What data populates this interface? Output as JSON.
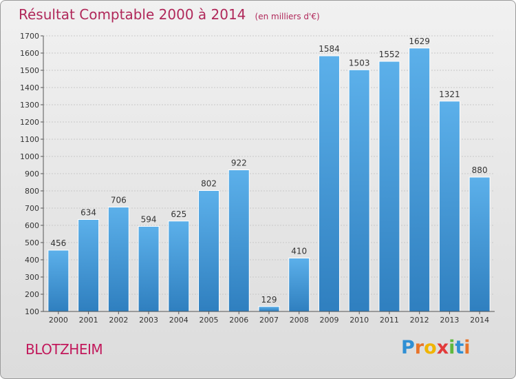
{
  "header": {
    "title": "Résultat Comptable 2000 à 2014",
    "subtitle": "(en milliers d'€)"
  },
  "footer": {
    "commune": "BLOTZHEIM",
    "logo_text": "Proxiti"
  },
  "colors": {
    "bar_top": "#5cb0ea",
    "bar_bottom": "#2f7fbf",
    "title": "#b0285a",
    "grid": "#c8c8c8"
  },
  "chart_data": {
    "type": "bar",
    "categories": [
      "2000",
      "2001",
      "2002",
      "2003",
      "2004",
      "2005",
      "2006",
      "2007",
      "2008",
      "2009",
      "2010",
      "2011",
      "2012",
      "2013",
      "2014"
    ],
    "values": [
      456,
      634,
      706,
      594,
      625,
      802,
      922,
      129,
      410,
      1584,
      1503,
      1552,
      1629,
      1321,
      880
    ],
    "ylim": [
      100,
      1700
    ],
    "yticks": [
      100,
      200,
      300,
      400,
      500,
      600,
      700,
      800,
      900,
      1000,
      1100,
      1200,
      1300,
      1400,
      1500,
      1600,
      1700
    ],
    "grid": "horizontal dashed",
    "legend": "none"
  }
}
